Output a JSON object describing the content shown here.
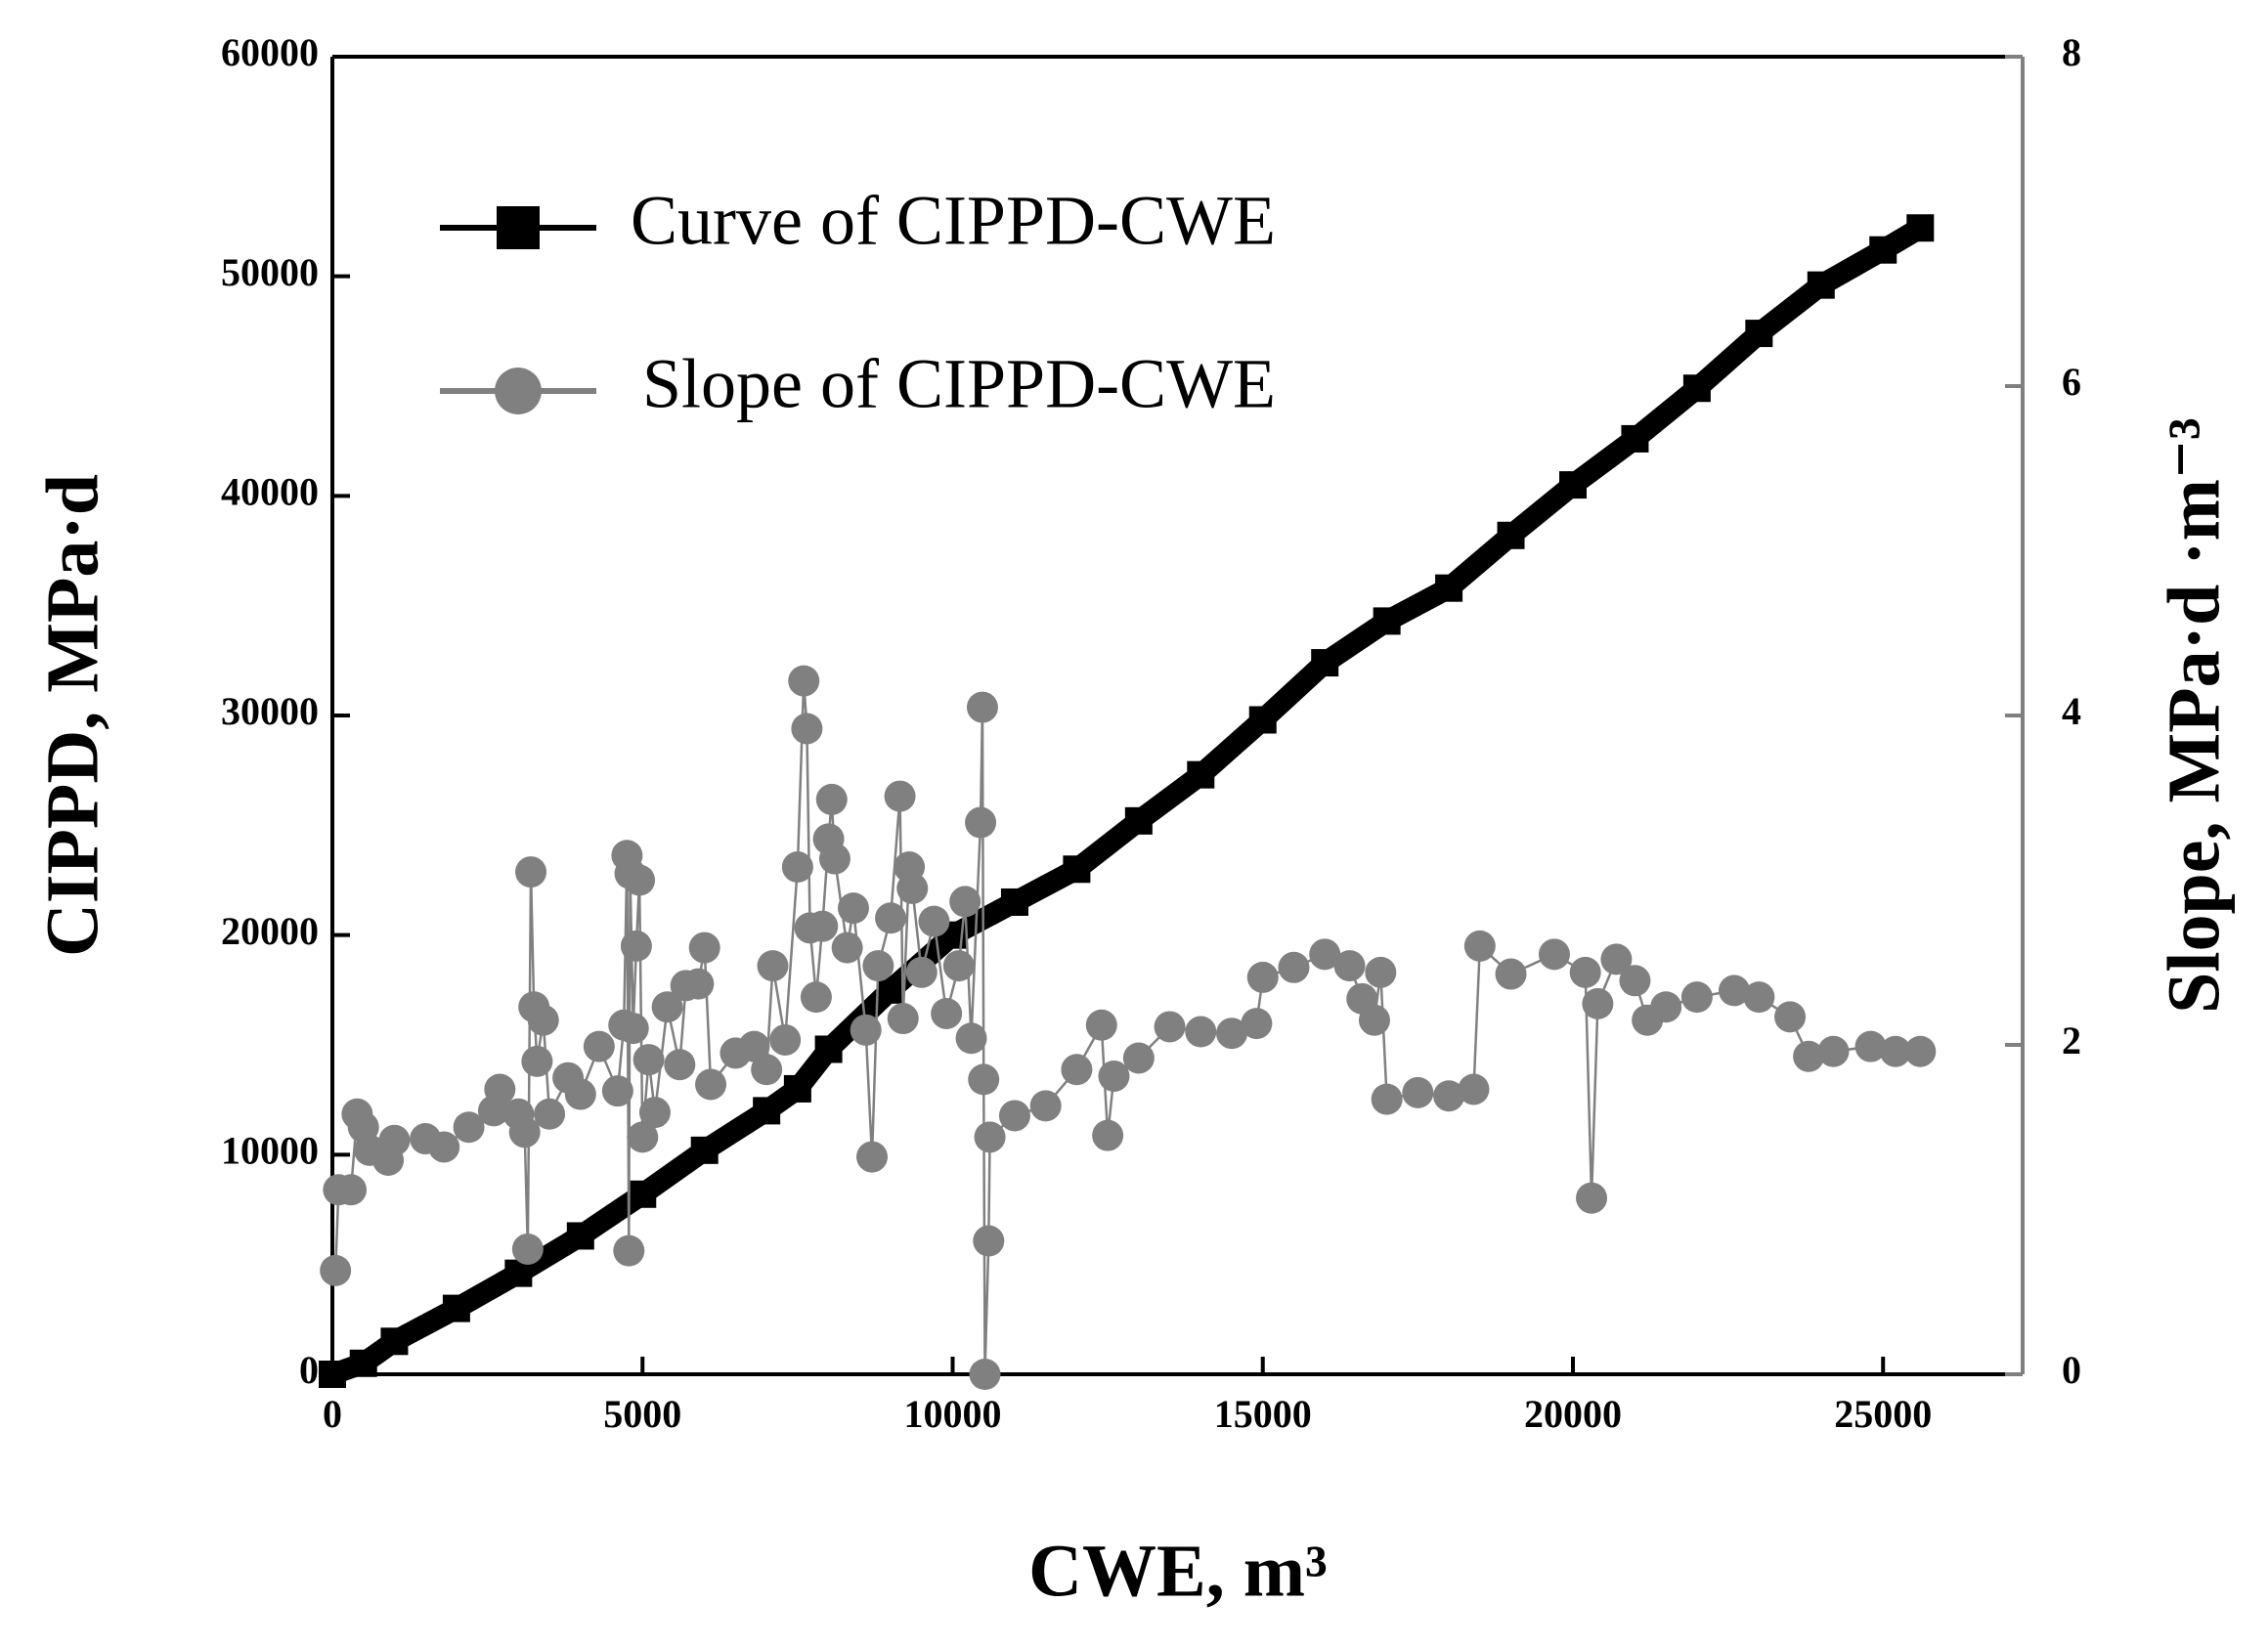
{
  "chart_data": {
    "type": "line",
    "xlabel": "CWE, m³",
    "ylabel": "CIPPD, MPa·d",
    "y2label": "Slope, MPa·d ·m⁻³",
    "xlim": [
      0,
      27250
    ],
    "xticks": [
      0,
      5000,
      10000,
      15000,
      20000,
      25000
    ],
    "ylim": [
      0,
      60000
    ],
    "yticks": [
      0,
      10000,
      20000,
      30000,
      40000,
      50000,
      60000
    ],
    "y2lim": [
      0,
      8
    ],
    "y2ticks": [
      0,
      2,
      4,
      6,
      8
    ],
    "legend": "upper left",
    "series": [
      {
        "name": "Curve of CIPPD-CWE",
        "color": "#000000",
        "marker": "square",
        "axis": "y",
        "x": [
          0,
          500,
          1000,
          2000,
          3000,
          4000,
          5000,
          6000,
          7000,
          7500,
          8000,
          9000,
          10000,
          11000,
          12000,
          13000,
          14000,
          15000,
          16000,
          17000,
          18000,
          19000,
          20000,
          21000,
          22000,
          23000,
          24000,
          25000,
          25600
        ],
        "values": [
          0,
          500,
          1500,
          3000,
          4600,
          6300,
          8200,
          10200,
          12000,
          13000,
          14800,
          17500,
          20000,
          21500,
          23000,
          25200,
          27300,
          29800,
          32400,
          34300,
          35800,
          38200,
          40500,
          42600,
          44900,
          47400,
          49600,
          51200,
          52200
        ]
      },
      {
        "name": "Slope of CIPPD-CWE",
        "color": "#808080",
        "marker": "circle",
        "axis": "y2",
        "x": [
          50,
          100,
          300,
          400,
          500,
          600,
          900,
          1000,
          1500,
          1800,
          2200,
          2600,
          2700,
          3000,
          3100,
          3150,
          3200,
          3250,
          3300,
          3400,
          3500,
          3800,
          4000,
          4300,
          4600,
          4700,
          4750,
          4780,
          4800,
          4850,
          4900,
          4950,
          5000,
          5100,
          5200,
          5400,
          5600,
          5700,
          5900,
          6000,
          6100,
          6500,
          6800,
          7000,
          7100,
          7300,
          7500,
          7600,
          7650,
          7700,
          7800,
          7900,
          8000,
          8050,
          8100,
          8300,
          8400,
          8600,
          8700,
          8800,
          9000,
          9150,
          9200,
          9300,
          9350,
          9500,
          9700,
          9900,
          10100,
          10200,
          10300,
          10450,
          10480,
          10500,
          10520,
          10580,
          10600,
          11000,
          11500,
          12000,
          12400,
          12500,
          12600,
          13000,
          13500,
          14000,
          14500,
          14900,
          15000,
          15500,
          16000,
          16400,
          16600,
          16800,
          16900,
          17000,
          17500,
          18000,
          18400,
          18500,
          19000,
          19700,
          20200,
          20300,
          20400,
          20700,
          21000,
          21200,
          21500,
          22000,
          22600,
          23000,
          23500,
          23800,
          24200,
          24800,
          25200,
          25600
        ],
        "values": [
          0.63,
          1.12,
          1.12,
          1.58,
          1.5,
          1.36,
          1.3,
          1.42,
          1.43,
          1.38,
          1.5,
          1.6,
          1.73,
          1.58,
          1.47,
          0.76,
          3.05,
          2.23,
          1.9,
          2.15,
          1.58,
          1.8,
          1.7,
          1.99,
          1.72,
          2.12,
          3.15,
          0.75,
          3.04,
          2.1,
          2.6,
          3.0,
          1.44,
          1.91,
          1.59,
          2.23,
          1.88,
          2.36,
          2.37,
          2.59,
          1.76,
          1.95,
          1.99,
          1.85,
          2.48,
          2.03,
          3.08,
          4.21,
          3.92,
          2.71,
          2.29,
          2.72,
          3.25,
          3.49,
          3.13,
          2.59,
          2.83,
          2.09,
          1.32,
          2.48,
          2.77,
          3.51,
          2.16,
          3.08,
          2.95,
          2.44,
          2.75,
          2.19,
          2.48,
          2.87,
          2.04,
          3.35,
          4.05,
          1.79,
          0,
          0.81,
          1.44,
          1.57,
          1.63,
          1.85,
          2.12,
          1.45,
          1.81,
          1.92,
          2.11,
          2.08,
          2.07,
          2.13,
          2.41,
          2.47,
          2.55,
          2.48,
          2.28,
          2.15,
          2.44,
          1.67,
          1.71,
          1.69,
          1.73,
          2.6,
          2.43,
          2.55,
          2.44,
          1.07,
          2.25,
          2.52,
          2.39,
          2.15,
          2.23,
          2.29,
          2.33,
          2.29,
          2.17,
          1.93,
          1.96,
          1.99,
          1.96,
          1.96
        ]
      }
    ]
  }
}
